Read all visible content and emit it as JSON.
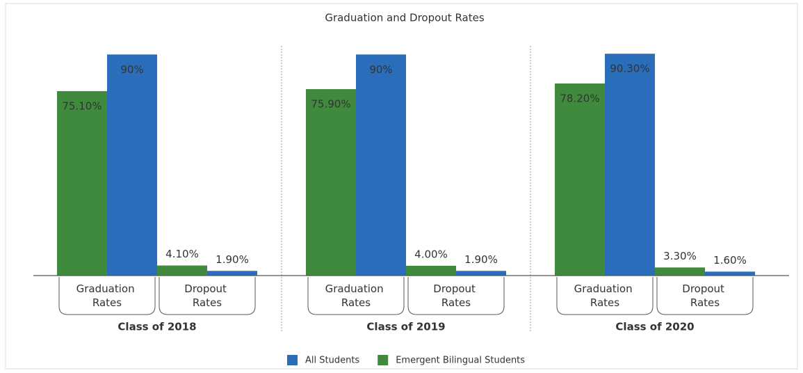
{
  "chart_data": {
    "type": "bar",
    "title": "Graduation and Dropout Rates",
    "groups": [
      "Class of 2018",
      "Class of 2019",
      "Class of 2020"
    ],
    "categories": [
      "Graduation Rates",
      "Dropout Rates",
      "Graduation Rates",
      "Dropout Rates",
      "Graduation Rates",
      "Dropout Rates"
    ],
    "series": [
      {
        "name": "Emergent Bilingual Students",
        "color": "#3f8a3c",
        "values": [
          75.1,
          4.1,
          75.9,
          4.0,
          78.2,
          3.3
        ],
        "value_labels": [
          "75.10%",
          "4.10%",
          "75.90%",
          "4.00%",
          "78.20%",
          "3.30%"
        ]
      },
      {
        "name": "All Students",
        "color": "#2a6ebb",
        "values": [
          90,
          1.9,
          90,
          1.9,
          90.3,
          1.6
        ],
        "value_labels": [
          "90%",
          "1.90%",
          "90%",
          "1.90%",
          "90.30%",
          "1.60%"
        ]
      }
    ],
    "ylim": [
      0,
      100
    ]
  }
}
